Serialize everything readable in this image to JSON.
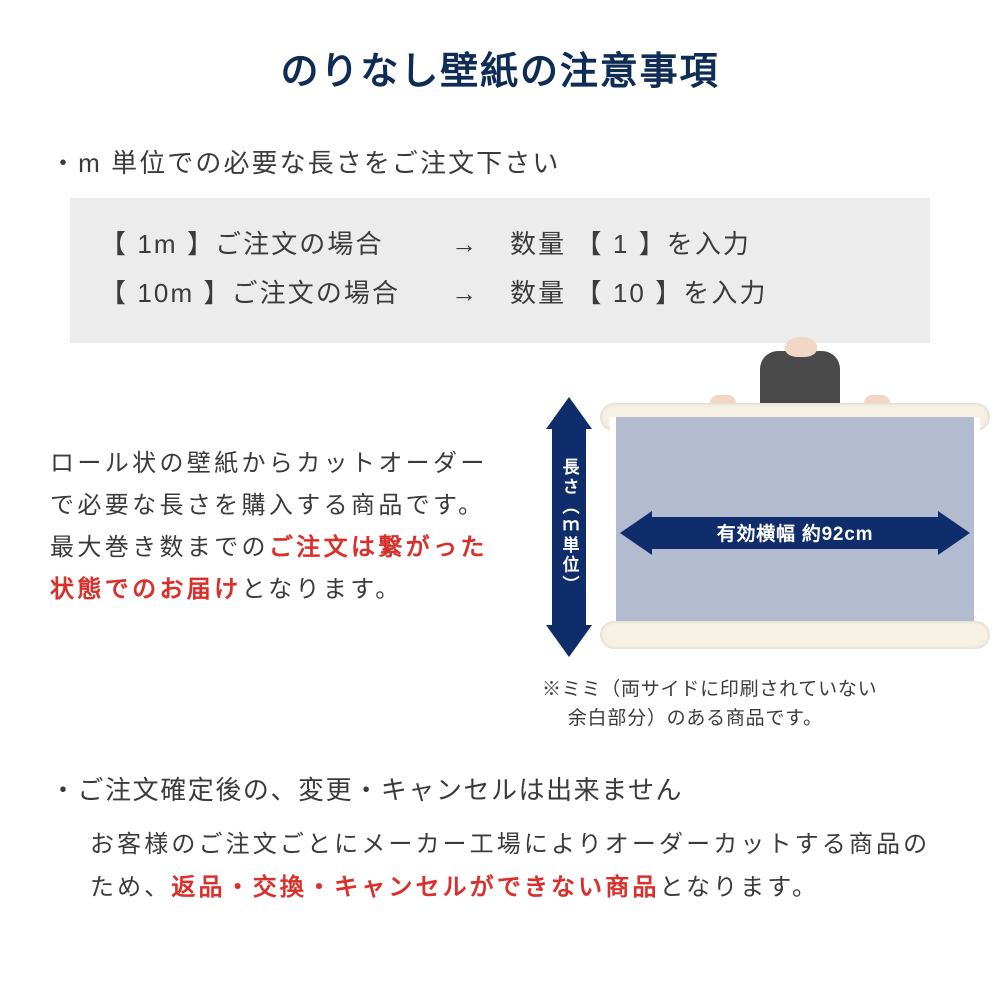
{
  "colors": {
    "title": "#0f2c54",
    "text": "#3b3b3b",
    "accent_red": "#d9302c",
    "arrow_navy": "#0f2c6b",
    "paper_fill": "#b3bbd1",
    "roll_fill": "#f6f1e4",
    "box_bg": "#ececec",
    "background": "#ffffff"
  },
  "title": "のりなし壁紙の注意事項",
  "bullet1": "・m 単位での必要な長さをご注文下さい",
  "examples": [
    {
      "left": "【 1m 】ご注文の場合",
      "arrow": "→",
      "right": "数量 【 1 】を入力"
    },
    {
      "left": "【 10m 】ご注文の場合",
      "arrow": "→",
      "right": "数量 【 10 】を入力"
    }
  ],
  "mid_text": {
    "part1": "ロール状の壁紙からカットオーダーで必要な長さを購入する商品です。最大巻き数までの",
    "part2_red": "ご注文は繋がった状態でのお届け",
    "part3": "となります。"
  },
  "diagram": {
    "v_label": "長さ（ｍ単位）",
    "h_label": "有効横幅 約92cm",
    "width_cm": 92
  },
  "mimi_note": "※ミミ（両サイドに印刷されていない\n　 余白部分）のある商品です。",
  "bullet2": "・ご注文確定後の、変更・キャンセルは出来ません",
  "body2": {
    "part1": "お客様のご注文ごとにメーカー工場によりオーダーカットする商品のため、",
    "part2_red": "返品・交換・キャンセルができない商品",
    "part3": "となります。"
  }
}
